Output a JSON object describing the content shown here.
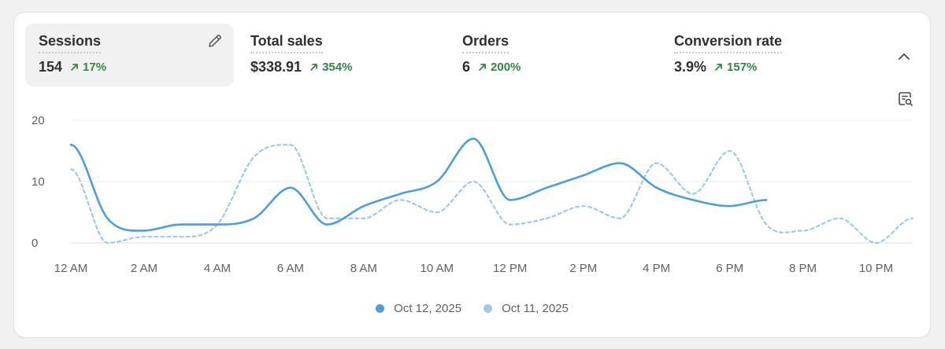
{
  "metrics": [
    {
      "label": "Sessions",
      "value": "154",
      "delta": "17%",
      "active": true
    },
    {
      "label": "Total sales",
      "value": "$338.91",
      "delta": "354%"
    },
    {
      "label": "Orders",
      "value": "6",
      "delta": "200%"
    },
    {
      "label": "Conversion rate",
      "value": "3.9%",
      "delta": "157%"
    }
  ],
  "icons": {
    "edit": "pencil-icon",
    "collapse": "chevron-up-icon",
    "explore": "explore-data-icon",
    "delta": "arrow-up-right-icon"
  },
  "colors": {
    "current": "#4a9fe0",
    "previous": "#9ccaed",
    "positive": "#2e8a43"
  },
  "chart_data": {
    "type": "line",
    "xlabel": "",
    "ylabel": "",
    "ylim": [
      0,
      20
    ],
    "xlim": [
      0,
      23
    ],
    "y_ticks": [
      0,
      10,
      20
    ],
    "grid": true,
    "legend_position": "bottom-center",
    "x_tick_labels": [
      "12 AM",
      "2 AM",
      "4 AM",
      "6 AM",
      "8 AM",
      "10 AM",
      "12 PM",
      "2 PM",
      "4 PM",
      "6 PM",
      "8 PM",
      "10 PM"
    ],
    "x_tick_hours": [
      0,
      2,
      4,
      6,
      8,
      10,
      12,
      14,
      16,
      18,
      20,
      22
    ],
    "series": [
      {
        "name": "Oct 12, 2025",
        "style": "solid",
        "x": [
          0,
          1,
          2,
          3,
          4,
          5,
          6,
          7,
          8,
          9,
          10,
          11,
          12,
          13,
          14,
          15,
          16,
          17,
          18,
          19
        ],
        "values": [
          16,
          4,
          2,
          3,
          3,
          4,
          9,
          3,
          6,
          8,
          10,
          17,
          7,
          9,
          11,
          13,
          9,
          7,
          6,
          7
        ]
      },
      {
        "name": "Oct 11, 2025",
        "style": "dashed",
        "x": [
          0,
          1,
          2,
          3,
          4,
          5,
          6,
          7,
          8,
          9,
          10,
          11,
          12,
          13,
          14,
          15,
          16,
          17,
          18,
          19,
          20,
          21,
          22,
          23
        ],
        "values": [
          12,
          0,
          1,
          1,
          3,
          14,
          16,
          4,
          4,
          7,
          5,
          10,
          3,
          4,
          6,
          4,
          13,
          8,
          15,
          3,
          2,
          4,
          0,
          4
        ]
      }
    ]
  }
}
